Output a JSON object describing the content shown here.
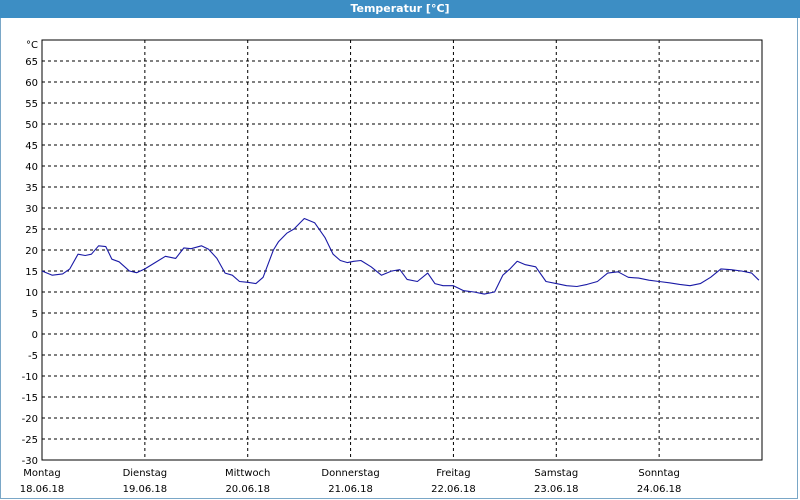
{
  "window": {
    "title": "Temperatur [°C]"
  },
  "chart_data": {
    "type": "line",
    "ylabel": "°C",
    "ylim": [
      -30,
      70
    ],
    "yticks": [
      65,
      60,
      55,
      50,
      45,
      40,
      35,
      30,
      25,
      20,
      15,
      10,
      5,
      0,
      -5,
      -10,
      -15,
      -20,
      -25,
      -30
    ],
    "xlim": [
      0,
      7
    ],
    "grid": true,
    "x_labels": [
      {
        "day": "Montag",
        "date": "18.06.18"
      },
      {
        "day": "Dienstag",
        "date": "19.06.18"
      },
      {
        "day": "Mittwoch",
        "date": "20.06.18"
      },
      {
        "day": "Donnerstag",
        "date": "21.06.18"
      },
      {
        "day": "Freitag",
        "date": "22.06.18"
      },
      {
        "day": "Samstag",
        "date": "23.06.18"
      },
      {
        "day": "Sonntag",
        "date": "24.06.18"
      }
    ],
    "series": [
      {
        "color": "#1a1aa6",
        "x": [
          0.0,
          0.1,
          0.2,
          0.27,
          0.35,
          0.42,
          0.48,
          0.55,
          0.62,
          0.68,
          0.75,
          0.85,
          0.92,
          1.0,
          1.1,
          1.2,
          1.3,
          1.38,
          1.45,
          1.55,
          1.62,
          1.7,
          1.78,
          1.85,
          1.92,
          2.0,
          2.08,
          2.15,
          2.25,
          2.3,
          2.38,
          2.45,
          2.55,
          2.65,
          2.75,
          2.83,
          2.9,
          2.97,
          3.03,
          3.1,
          3.2,
          3.3,
          3.4,
          3.48,
          3.55,
          3.65,
          3.75,
          3.82,
          3.9,
          4.0,
          4.1,
          4.2,
          4.3,
          4.4,
          4.48,
          4.55,
          4.62,
          4.7,
          4.8,
          4.9,
          5.0,
          5.1,
          5.2,
          5.3,
          5.4,
          5.5,
          5.6,
          5.7,
          5.8,
          5.9,
          6.0,
          6.1,
          6.2,
          6.3,
          6.4,
          6.5,
          6.6,
          6.7,
          6.8,
          6.9,
          6.97
        ],
        "values": [
          15.0,
          14.0,
          14.3,
          15.5,
          19.0,
          18.7,
          19.0,
          21.0,
          20.8,
          17.8,
          17.2,
          15.0,
          14.6,
          15.5,
          17.0,
          18.5,
          18.0,
          20.5,
          20.3,
          21.0,
          20.2,
          18.0,
          14.5,
          14.0,
          12.5,
          12.3,
          12.0,
          13.5,
          20.0,
          22.0,
          24.0,
          25.0,
          27.5,
          26.5,
          23.0,
          19.0,
          17.5,
          17.0,
          17.3,
          17.5,
          16.0,
          14.0,
          15.0,
          15.3,
          13.0,
          12.5,
          14.5,
          12.0,
          11.5,
          11.5,
          10.3,
          10.0,
          9.5,
          10.0,
          14.0,
          15.5,
          17.3,
          16.5,
          16.0,
          12.5,
          12.0,
          11.5,
          11.3,
          11.8,
          12.5,
          14.5,
          14.8,
          13.5,
          13.3,
          12.8,
          12.5,
          12.2,
          11.8,
          11.5,
          12.0,
          13.5,
          15.5,
          15.3,
          15.0,
          14.5,
          12.8
        ]
      }
    ]
  }
}
